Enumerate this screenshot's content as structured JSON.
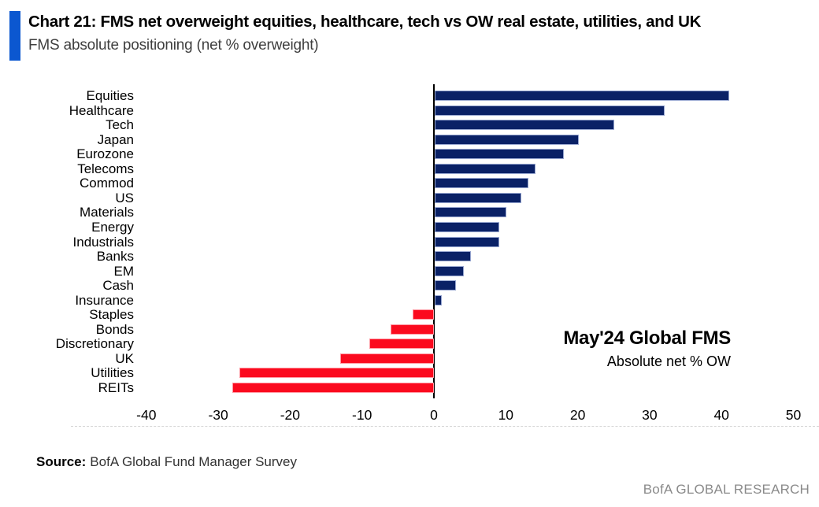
{
  "header": {
    "title": "Chart 21: FMS net overweight equities, healthcare, tech vs OW real estate, utilities, and UK",
    "subtitle": "FMS absolute positioning (net % overweight)",
    "accent_color": "#0b57d0"
  },
  "chart_data": {
    "type": "bar",
    "orientation": "horizontal",
    "title": "Chart 21: FMS net overweight equities, healthcare, tech vs OW real estate, utilities, and UK",
    "subtitle": "FMS absolute positioning (net % overweight)",
    "categories": [
      "Equities",
      "Healthcare",
      "Tech",
      "Japan",
      "Eurozone",
      "Telecoms",
      "Commod",
      "US",
      "Materials",
      "Energy",
      "Industrials",
      "Banks",
      "EM",
      "Cash",
      "Insurance",
      "Staples",
      "Bonds",
      "Discretionary",
      "UK",
      "Utilities",
      "REITs"
    ],
    "values": [
      41,
      32,
      25,
      20,
      18,
      14,
      13,
      12,
      10,
      9,
      9,
      5,
      4,
      3,
      1,
      -3,
      -6,
      -9,
      -13,
      -27,
      -28
    ],
    "xlabel": "",
    "ylabel": "",
    "xlim": [
      -45,
      51
    ],
    "xticks": [
      -40,
      -30,
      -20,
      -10,
      0,
      10,
      20,
      30,
      40,
      50
    ],
    "grid": false,
    "legend": null,
    "positive_color": "#0a2166",
    "negative_color": "#fb0a1e",
    "annotation_title": "May'24 Global FMS",
    "annotation_subtitle": "Absolute net % OW"
  },
  "footer": {
    "source_label": "Source:",
    "source_text": "BofA Global Fund Manager Survey",
    "brand": "BofA GLOBAL RESEARCH"
  }
}
